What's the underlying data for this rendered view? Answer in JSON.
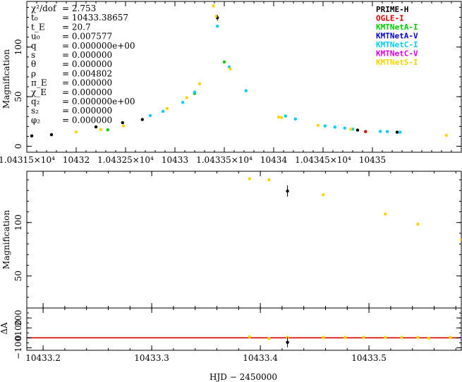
{
  "chart_data": [
    {
      "type": "line",
      "panel": "full",
      "ylabel": "Magnification",
      "xlim": [
        10431.5,
        10435.9
      ],
      "ylim": [
        -6,
        146
      ],
      "x_tick_labels": [
        "1.04315×10⁴",
        "10432",
        "1.04325×10⁴",
        "10433",
        "1.04335×10⁴",
        "10434",
        "1.04345×10⁴",
        "10435"
      ],
      "x_tick_values": [
        10431.5,
        10432.0,
        10432.5,
        10433.0,
        10433.5,
        10434.0,
        10434.5,
        10435.0
      ],
      "y_tick_labels": [
        "0",
        "50",
        "100"
      ],
      "y_tick_values": [
        0,
        50,
        100
      ],
      "model": {
        "t0": 10433.38657,
        "tE": 20.7,
        "u0": 0.007577,
        "rho": 0.004802
      },
      "series": [
        {
          "name": "PRIME-H",
          "color": "#000000",
          "points": [
            [
              10431.55,
              10.5
            ],
            [
              10431.75,
              11.7
            ],
            [
              10432.2,
              19.5
            ],
            [
              10432.47,
              23.8
            ],
            [
              10432.67,
              27.0
            ],
            [
              10433.43,
              129.5
            ],
            [
              10434.85,
              16.3
            ],
            [
              10435.25,
              14.2
            ]
          ]
        },
        {
          "name": "OGLE-I",
          "color": "#dd0000",
          "points": [
            [
              10434.93,
              14.8
            ]
          ]
        },
        {
          "name": "KMTNetA-I",
          "color": "#00cc00",
          "points": [
            [
              10431.42,
              10.3
            ],
            [
              10432.32,
              16.6
            ],
            [
              10433.2,
              53.3
            ],
            [
              10433.5,
              85.0
            ]
          ]
        },
        {
          "name": "KMTNetC-I",
          "color": "#00ccff",
          "points": [
            [
              10432.75,
              31.0
            ],
            [
              10432.88,
              35.2
            ],
            [
              10433.08,
              44.2
            ],
            [
              10433.2,
              54.5
            ],
            [
              10433.43,
              121.0
            ],
            [
              10433.55,
              80.0
            ],
            [
              10433.72,
              56.0
            ],
            [
              10434.12,
              30.5
            ],
            [
              10434.22,
              27.5
            ],
            [
              10434.52,
              20.5
            ],
            [
              10434.62,
              19.3
            ],
            [
              10434.72,
              18.3
            ],
            [
              10434.8,
              17.2
            ],
            [
              10435.08,
              15.0
            ],
            [
              10435.15,
              14.8
            ],
            [
              10435.28,
              14.2
            ]
          ]
        },
        {
          "name": "KMTNetS-I",
          "color": "#ffd400",
          "points": [
            [
              10431.42,
              10.2
            ],
            [
              10432.0,
              14.5
            ],
            [
              10432.25,
              16.9
            ],
            [
              10432.48,
              20.5
            ],
            [
              10432.92,
              38.0
            ],
            [
              10433.12,
              49.0
            ],
            [
              10433.25,
              63.0
            ],
            [
              10433.39,
              141.5
            ],
            [
              10433.42,
              131.0
            ],
            [
              10433.56,
              78.0
            ],
            [
              10434.05,
              29.5
            ],
            [
              10434.08,
              29.0
            ],
            [
              10434.45,
              21.0
            ],
            [
              10434.78,
              17.2
            ],
            [
              10435.75,
              11.0
            ]
          ]
        }
      ]
    },
    {
      "type": "line",
      "panel": "zoom",
      "ylabel": "Magnification",
      "xlim": [
        10433.185,
        10433.585
      ],
      "ylim": [
        20,
        148
      ],
      "y_tick_labels": [
        "50",
        "100"
      ],
      "y_tick_values": [
        50,
        100
      ],
      "series": [
        {
          "name": "PRIME-H",
          "color": "#000000",
          "points": [
            [
              10433.425,
              129.5
            ]
          ]
        },
        {
          "name": "KMTNetS-I",
          "color": "#ffd400",
          "points": [
            [
              10433.39,
              141.0
            ],
            [
              10433.408,
              140.0
            ],
            [
              10433.458,
              126.0
            ],
            [
              10433.515,
              108.0
            ],
            [
              10433.545,
              98.5
            ],
            [
              10433.585,
              84.0
            ]
          ]
        }
      ]
    },
    {
      "type": "scatter",
      "panel": "residual",
      "ylabel": "ΔA",
      "xlim": [
        10433.185,
        10433.585
      ],
      "ylim": [
        -125,
        300
      ],
      "xlabel": "HJD − 2450000",
      "x_tick_labels": [
        "10433.2",
        "10433.3",
        "10433.4",
        "10433.5"
      ],
      "x_tick_values": [
        10433.2,
        10433.3,
        10433.4,
        10433.5
      ],
      "y_tick_labels": [
        "−100",
        "0",
        "100",
        "200"
      ],
      "y_tick_values": [
        -100,
        0,
        100,
        200
      ],
      "series": [
        {
          "name": "PRIME-H",
          "color": "#000000",
          "points": [
            [
              10433.425,
              -45
            ]
          ]
        },
        {
          "name": "KMTNetS-I",
          "color": "#ffd400",
          "points": [
            [
              10433.39,
              10
            ],
            [
              10433.408,
              -8
            ],
            [
              10433.425,
              5
            ],
            [
              10433.458,
              5
            ],
            [
              10433.478,
              5
            ],
            [
              10433.495,
              5
            ],
            [
              10433.515,
              5
            ],
            [
              10433.53,
              5
            ],
            [
              10433.545,
              5
            ],
            [
              10433.555,
              -5
            ],
            [
              10433.575,
              5
            ]
          ]
        }
      ]
    }
  ],
  "params": [
    {
      "sym": "χ²/dof",
      "val": "= 2.753"
    },
    {
      "sym": "t₀",
      "val": "= 10433.38657"
    },
    {
      "sym": "t_E",
      "val": "= 20.7"
    },
    {
      "sym": "u₀",
      "val": "= 0.007577"
    },
    {
      "sym": "q",
      "val": "= 0.000000e+00"
    },
    {
      "sym": "s",
      "val": "= 0.000000"
    },
    {
      "sym": "θ",
      "val": "= 0.000000"
    },
    {
      "sym": "ρ",
      "val": "= 0.004802"
    },
    {
      "sym": "π_E",
      "val": "= 0.000000"
    },
    {
      "sym": "χ_E",
      "val": "= 0.000000"
    },
    {
      "sym": "q₂",
      "val": "= 0.000000e+00"
    },
    {
      "sym": "s₂",
      "val": "= 0.000000"
    },
    {
      "sym": "φ₂",
      "val": "= 0.000000"
    }
  ],
  "legend": [
    {
      "name": "PRIME-H",
      "color": "#000000"
    },
    {
      "name": "OGLE-I",
      "color": "#dd0000"
    },
    {
      "name": "KMTNetA-I",
      "color": "#00cc00"
    },
    {
      "name": "KMTNetA-V",
      "color": "#0000cc"
    },
    {
      "name": "KMTNetC-I",
      "color": "#00ccff"
    },
    {
      "name": "KMTNetC-V",
      "color": "#dd00dd"
    },
    {
      "name": "KMTNetS-I",
      "color": "#ffd400"
    }
  ],
  "model_colors": {
    "red": "#dd0000",
    "green": "#00cc00",
    "orange": "#ffa500"
  }
}
